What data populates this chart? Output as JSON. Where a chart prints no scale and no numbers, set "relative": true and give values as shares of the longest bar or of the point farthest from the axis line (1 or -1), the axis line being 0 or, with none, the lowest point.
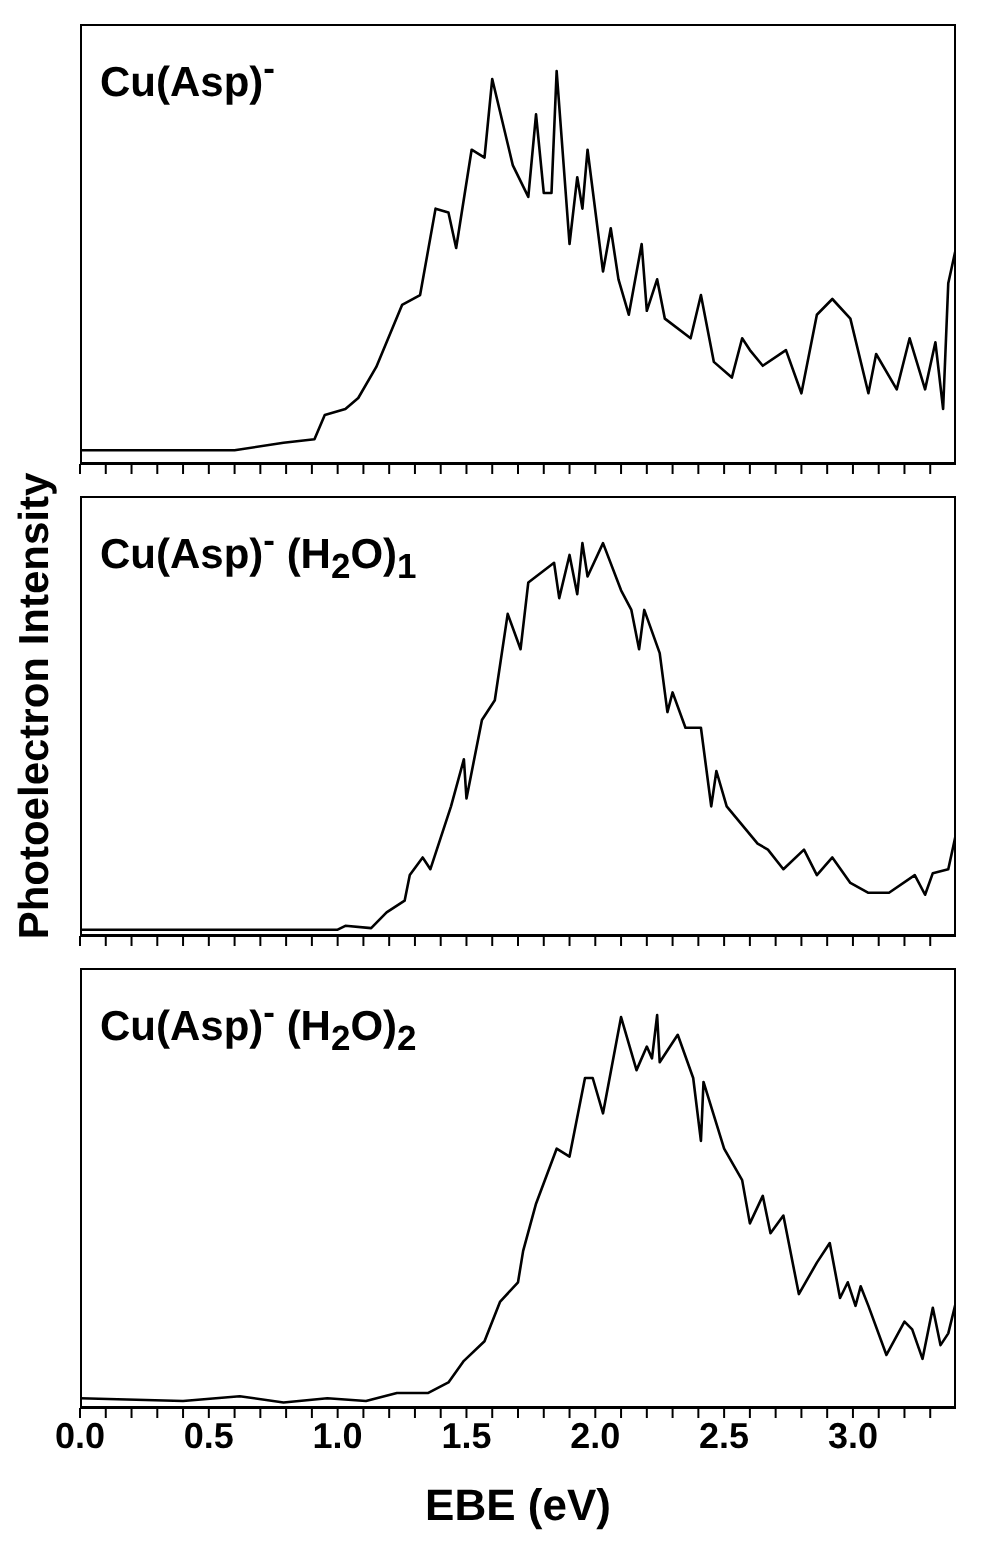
{
  "chart_data": [
    {
      "type": "line",
      "title": "Cu(Asp)$^{-}$",
      "relative": true,
      "color": "#000000",
      "marker": "none",
      "line_style": "solid",
      "tick_labels": false,
      "xlim": [
        0,
        3.4
      ],
      "xticks": [
        0,
        {
          "value": 0.1,
          "label": null
        },
        {
          "value": 0.2,
          "label": null
        },
        {
          "value": 0.3,
          "label": null
        },
        {
          "value": 0.4,
          "label": null
        },
        0.5,
        {
          "value": 0.6,
          "label": null
        },
        {
          "value": 0.7,
          "label": null
        },
        {
          "value": 0.8,
          "label": null
        },
        {
          "value": 0.9,
          "label": null
        },
        1.0,
        {
          "value": 1.1,
          "label": null
        },
        {
          "value": 1.2,
          "label": null
        },
        {
          "value": 1.3,
          "label": null
        },
        {
          "value": 1.4,
          "label": null
        },
        1.5,
        {
          "value": 1.6,
          "label": null
        },
        {
          "value": 1.7,
          "label": null
        },
        {
          "value": 1.8,
          "label": null
        },
        {
          "value": 1.9,
          "label": null
        },
        2.0,
        {
          "value": 2.1,
          "label": null
        },
        {
          "value": 2.2,
          "label": null
        },
        {
          "value": 2.3,
          "label": null
        },
        {
          "value": 2.4,
          "label": null
        },
        2.5,
        {
          "value": 2.6,
          "label": null
        },
        {
          "value": 2.7,
          "label": null
        },
        {
          "value": 2.8,
          "label": null
        },
        {
          "value": 2.9,
          "label": null
        },
        3.0,
        {
          "value": 3.1,
          "label": null
        },
        {
          "value": 3.2,
          "label": null
        },
        {
          "value": 3.3,
          "label": null
        }
      ],
      "x": [
        0,
        0.3,
        0.6,
        0.79,
        0.91,
        0.95,
        1.03,
        1.08,
        1.15,
        1.25,
        1.32,
        1.38,
        1.43,
        1.46,
        1.52,
        1.57,
        1.6,
        1.68,
        1.74,
        1.77,
        1.8,
        1.83,
        1.85,
        1.9,
        1.93,
        1.95,
        1.97,
        2.03,
        2.06,
        2.09,
        2.13,
        2.18,
        2.2,
        2.24,
        2.27,
        2.37,
        2.41,
        2.46,
        2.53,
        2.57,
        2.6,
        2.65,
        2.74,
        2.8,
        2.86,
        2.92,
        2.99,
        3.06,
        3.09,
        3.17,
        3.22,
        3.28,
        3.32,
        3.35,
        3.37,
        3.4
      ],
      "values": [
        0.035,
        0.035,
        0.035,
        0.054,
        0.063,
        0.125,
        0.14,
        0.168,
        0.247,
        0.405,
        0.43,
        0.65,
        0.64,
        0.55,
        0.8,
        0.78,
        0.98,
        0.76,
        0.68,
        0.89,
        0.69,
        0.69,
        1.0,
        0.56,
        0.73,
        0.65,
        0.8,
        0.49,
        0.6,
        0.47,
        0.38,
        0.56,
        0.39,
        0.47,
        0.37,
        0.32,
        0.43,
        0.26,
        0.22,
        0.32,
        0.29,
        0.25,
        0.29,
        0.18,
        0.38,
        0.42,
        0.37,
        0.18,
        0.28,
        0.19,
        0.32,
        0.19,
        0.31,
        0.14,
        0.46,
        0.55
      ]
    },
    {
      "type": "line",
      "title": "Cu(Asp)$^{-}$ (H$_{2}$O)$_{1}$",
      "ylabel": "Photoelectron Intensity",
      "relative": true,
      "color": "#000000",
      "marker": "none",
      "line_style": "solid",
      "tick_labels": false,
      "xlim": [
        0,
        3.4
      ],
      "xticks": [
        0,
        {
          "value": 0.1,
          "label": null
        },
        {
          "value": 0.2,
          "label": null
        },
        {
          "value": 0.3,
          "label": null
        },
        {
          "value": 0.4,
          "label": null
        },
        0.5,
        {
          "value": 0.6,
          "label": null
        },
        {
          "value": 0.7,
          "label": null
        },
        {
          "value": 0.8,
          "label": null
        },
        {
          "value": 0.9,
          "label": null
        },
        1.0,
        {
          "value": 1.1,
          "label": null
        },
        {
          "value": 1.2,
          "label": null
        },
        {
          "value": 1.3,
          "label": null
        },
        {
          "value": 1.4,
          "label": null
        },
        1.5,
        {
          "value": 1.6,
          "label": null
        },
        {
          "value": 1.7,
          "label": null
        },
        {
          "value": 1.8,
          "label": null
        },
        {
          "value": 1.9,
          "label": null
        },
        2.0,
        {
          "value": 2.1,
          "label": null
        },
        {
          "value": 2.2,
          "label": null
        },
        {
          "value": 2.3,
          "label": null
        },
        {
          "value": 2.4,
          "label": null
        },
        2.5,
        {
          "value": 2.6,
          "label": null
        },
        {
          "value": 2.7,
          "label": null
        },
        {
          "value": 2.8,
          "label": null
        },
        {
          "value": 2.9,
          "label": null
        },
        3.0,
        {
          "value": 3.1,
          "label": null
        },
        {
          "value": 3.2,
          "label": null
        },
        {
          "value": 3.3,
          "label": null
        }
      ],
      "x": [
        0,
        0.5,
        1.0,
        1.03,
        1.13,
        1.19,
        1.26,
        1.28,
        1.33,
        1.36,
        1.44,
        1.49,
        1.5,
        1.56,
        1.61,
        1.66,
        1.71,
        1.74,
        1.84,
        1.86,
        1.9,
        1.93,
        1.95,
        1.97,
        2.03,
        2.1,
        2.14,
        2.17,
        2.19,
        2.25,
        2.28,
        2.3,
        2.35,
        2.41,
        2.45,
        2.47,
        2.51,
        2.63,
        2.67,
        2.73,
        2.81,
        2.86,
        2.92,
        2.99,
        3.06,
        3.14,
        3.24,
        3.28,
        3.31,
        3.37,
        3.4
      ],
      "values": [
        0.016,
        0.016,
        0.016,
        0.026,
        0.02,
        0.06,
        0.09,
        0.155,
        0.2,
        0.17,
        0.33,
        0.45,
        0.35,
        0.55,
        0.6,
        0.82,
        0.73,
        0.9,
        0.95,
        0.86,
        0.97,
        0.87,
        1.0,
        0.915,
        1.0,
        0.88,
        0.83,
        0.73,
        0.83,
        0.72,
        0.57,
        0.62,
        0.53,
        0.53,
        0.33,
        0.42,
        0.33,
        0.235,
        0.22,
        0.17,
        0.22,
        0.155,
        0.2,
        0.135,
        0.11,
        0.11,
        0.155,
        0.105,
        0.16,
        0.17,
        0.26
      ]
    },
    {
      "type": "line",
      "title": "Cu(Asp)$^{-}$ (H$_{2}$O)$_{2}$",
      "xlabel": "EBE (eV)",
      "relative": true,
      "color": "#000000",
      "marker": "none",
      "line_style": "solid",
      "tick_labels": "x",
      "xlim": [
        0,
        3.4
      ],
      "xticks": [
        "0.0",
        {
          "value": 0.1,
          "label": null
        },
        {
          "value": 0.2,
          "label": null
        },
        {
          "value": 0.3,
          "label": null
        },
        {
          "value": 0.4,
          "label": null
        },
        {
          "value": 0.5,
          "label": "0.5"
        },
        {
          "value": 0.6,
          "label": null
        },
        {
          "value": 0.7,
          "label": null
        },
        {
          "value": 0.8,
          "label": null
        },
        {
          "value": 0.9,
          "label": null
        },
        {
          "value": 1.0,
          "label": "1.0"
        },
        {
          "value": 1.1,
          "label": null
        },
        {
          "value": 1.2,
          "label": null
        },
        {
          "value": 1.3,
          "label": null
        },
        {
          "value": 1.4,
          "label": null
        },
        {
          "value": 1.5,
          "label": "1.5"
        },
        {
          "value": 1.6,
          "label": null
        },
        {
          "value": 1.7,
          "label": null
        },
        {
          "value": 1.8,
          "label": null
        },
        {
          "value": 1.9,
          "label": null
        },
        {
          "value": 2.0,
          "label": "2.0"
        },
        {
          "value": 2.1,
          "label": null
        },
        {
          "value": 2.2,
          "label": null
        },
        {
          "value": 2.3,
          "label": null
        },
        {
          "value": 2.4,
          "label": null
        },
        {
          "value": 2.5,
          "label": "2.5"
        },
        {
          "value": 2.6,
          "label": null
        },
        {
          "value": 2.7,
          "label": null
        },
        {
          "value": 2.8,
          "label": null
        },
        {
          "value": 2.9,
          "label": null
        },
        {
          "value": 3.0,
          "label": "3.0"
        },
        {
          "value": 3.1,
          "label": null
        },
        {
          "value": 3.2,
          "label": null
        },
        {
          "value": 3.3,
          "label": null
        }
      ],
      "x": [
        0,
        0.4,
        0.62,
        0.79,
        0.96,
        1.11,
        1.23,
        1.35,
        1.43,
        1.49,
        1.57,
        1.63,
        1.7,
        1.72,
        1.77,
        1.85,
        1.9,
        1.96,
        1.99,
        2.03,
        2.1,
        2.16,
        2.2,
        2.22,
        2.24,
        2.25,
        2.32,
        2.38,
        2.41,
        2.42,
        2.5,
        2.57,
        2.6,
        2.65,
        2.68,
        2.73,
        2.79,
        2.86,
        2.91,
        2.95,
        2.98,
        3.01,
        3.03,
        3.06,
        3.13,
        3.2,
        3.23,
        3.27,
        3.31,
        3.34,
        3.37,
        3.4
      ],
      "values": [
        0.025,
        0.018,
        0.03,
        0.014,
        0.025,
        0.018,
        0.038,
        0.038,
        0.065,
        0.12,
        0.17,
        0.27,
        0.32,
        0.4,
        0.52,
        0.66,
        0.64,
        0.84,
        0.84,
        0.75,
        0.995,
        0.86,
        0.92,
        0.89,
        1.0,
        0.88,
        0.95,
        0.84,
        0.68,
        0.83,
        0.66,
        0.58,
        0.47,
        0.54,
        0.445,
        0.49,
        0.29,
        0.37,
        0.42,
        0.28,
        0.32,
        0.26,
        0.31,
        0.26,
        0.135,
        0.22,
        0.2,
        0.125,
        0.255,
        0.16,
        0.19,
        0.27
      ]
    }
  ]
}
